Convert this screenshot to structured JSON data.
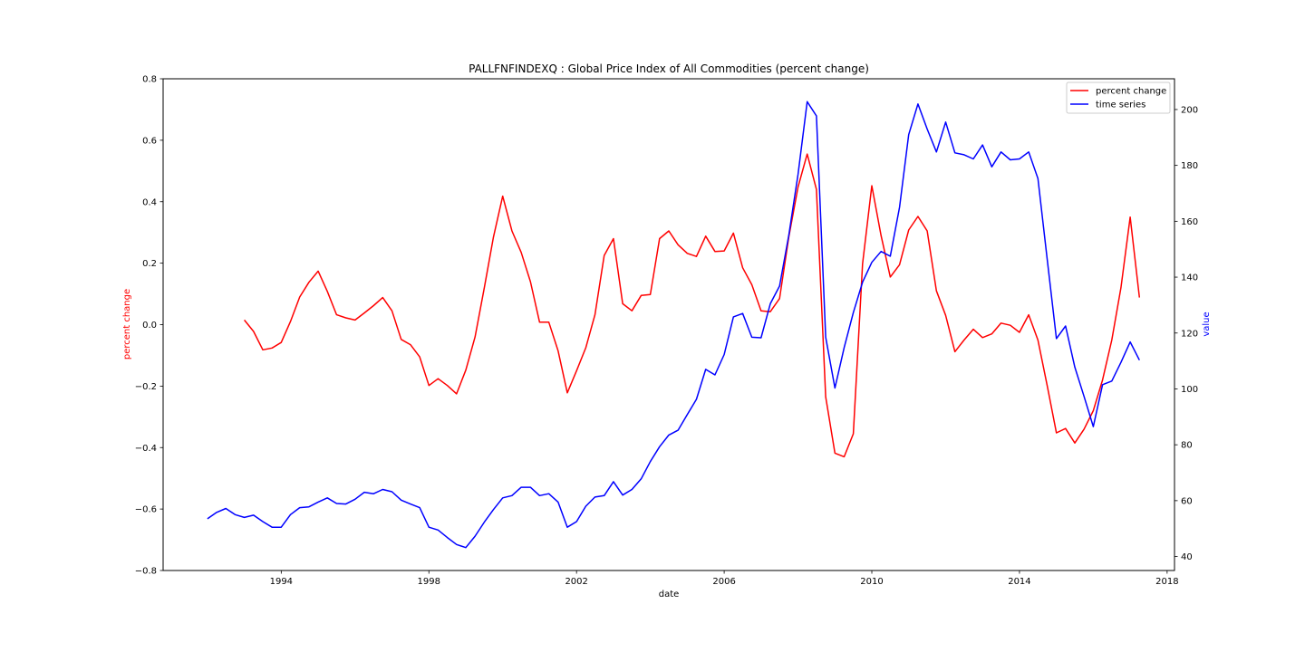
{
  "chart_data": {
    "type": "line",
    "title": "PALLFNFINDEXQ :  Global Price Index of All Commodities (percent change)",
    "xlabel": "date",
    "ylabel_left": "percent change",
    "ylabel_right": "value",
    "xlim": [
      1990.8,
      2018.2
    ],
    "ylim_left": [
      -0.8,
      0.8
    ],
    "ylim_right": [
      35,
      211
    ],
    "x_ticks": [
      1994,
      1998,
      2002,
      2006,
      2010,
      2014,
      2018
    ],
    "y_ticks_left": [
      -0.8,
      -0.6,
      -0.4,
      -0.2,
      0.0,
      0.2,
      0.4,
      0.6,
      0.8
    ],
    "y_ticks_left_labels": [
      "−0.8",
      "−0.6",
      "−0.4",
      "−0.2",
      "0.0",
      "0.2",
      "0.4",
      "0.6",
      "0.8"
    ],
    "y_ticks_right": [
      40,
      60,
      80,
      100,
      120,
      140,
      160,
      180,
      200
    ],
    "legend_position": "top-right",
    "grid": false,
    "series": [
      {
        "name": "percent change",
        "axis": "left",
        "color": "#ff0000",
        "points": [
          [
            1993.0,
            0.015
          ],
          [
            1993.25,
            -0.022
          ],
          [
            1993.5,
            -0.082
          ],
          [
            1993.75,
            -0.076
          ],
          [
            1994.0,
            -0.058
          ],
          [
            1994.25,
            0.01
          ],
          [
            1994.5,
            0.09
          ],
          [
            1994.75,
            0.138
          ],
          [
            1995.0,
            0.174
          ],
          [
            1995.25,
            0.108
          ],
          [
            1995.5,
            0.032
          ],
          [
            1995.75,
            0.022
          ],
          [
            1996.0,
            0.015
          ],
          [
            1996.25,
            0.038
          ],
          [
            1996.5,
            0.062
          ],
          [
            1996.75,
            0.088
          ],
          [
            1997.0,
            0.045
          ],
          [
            1997.25,
            -0.048
          ],
          [
            1997.5,
            -0.065
          ],
          [
            1997.75,
            -0.105
          ],
          [
            1998.0,
            -0.198
          ],
          [
            1998.25,
            -0.176
          ],
          [
            1998.5,
            -0.198
          ],
          [
            1998.75,
            -0.225
          ],
          [
            1999.0,
            -0.148
          ],
          [
            1999.25,
            -0.04
          ],
          [
            1999.5,
            0.12
          ],
          [
            1999.75,
            0.285
          ],
          [
            2000.0,
            0.418
          ],
          [
            2000.25,
            0.305
          ],
          [
            2000.5,
            0.235
          ],
          [
            2000.75,
            0.14
          ],
          [
            2001.0,
            0.008
          ],
          [
            2001.25,
            0.008
          ],
          [
            2001.5,
            -0.085
          ],
          [
            2001.75,
            -0.222
          ],
          [
            2002.0,
            -0.15
          ],
          [
            2002.25,
            -0.075
          ],
          [
            2002.5,
            0.032
          ],
          [
            2002.75,
            0.225
          ],
          [
            2003.0,
            0.28
          ],
          [
            2003.25,
            0.068
          ],
          [
            2003.5,
            0.045
          ],
          [
            2003.75,
            0.095
          ],
          [
            2004.0,
            0.098
          ],
          [
            2004.25,
            0.28
          ],
          [
            2004.5,
            0.305
          ],
          [
            2004.75,
            0.26
          ],
          [
            2005.0,
            0.232
          ],
          [
            2005.25,
            0.222
          ],
          [
            2005.5,
            0.288
          ],
          [
            2005.75,
            0.238
          ],
          [
            2006.0,
            0.24
          ],
          [
            2006.25,
            0.298
          ],
          [
            2006.5,
            0.185
          ],
          [
            2006.75,
            0.13
          ],
          [
            2007.0,
            0.045
          ],
          [
            2007.25,
            0.042
          ],
          [
            2007.5,
            0.085
          ],
          [
            2007.75,
            0.285
          ],
          [
            2008.0,
            0.448
          ],
          [
            2008.25,
            0.555
          ],
          [
            2008.5,
            0.44
          ],
          [
            2008.75,
            -0.235
          ],
          [
            2009.0,
            -0.418
          ],
          [
            2009.25,
            -0.43
          ],
          [
            2009.5,
            -0.355
          ],
          [
            2009.75,
            0.198
          ],
          [
            2010.0,
            0.452
          ],
          [
            2010.25,
            0.29
          ],
          [
            2010.5,
            0.155
          ],
          [
            2010.75,
            0.195
          ],
          [
            2011.0,
            0.308
          ],
          [
            2011.25,
            0.352
          ],
          [
            2011.5,
            0.305
          ],
          [
            2011.75,
            0.11
          ],
          [
            2012.0,
            0.03
          ],
          [
            2012.25,
            -0.088
          ],
          [
            2012.5,
            -0.05
          ],
          [
            2012.75,
            -0.015
          ],
          [
            2013.0,
            -0.042
          ],
          [
            2013.25,
            -0.03
          ],
          [
            2013.5,
            0.005
          ],
          [
            2013.75,
            -0.002
          ],
          [
            2014.0,
            -0.025
          ],
          [
            2014.25,
            0.032
          ],
          [
            2014.5,
            -0.05
          ],
          [
            2014.75,
            -0.198
          ],
          [
            2015.0,
            -0.352
          ],
          [
            2015.25,
            -0.338
          ],
          [
            2015.5,
            -0.385
          ],
          [
            2015.75,
            -0.34
          ],
          [
            2016.0,
            -0.28
          ],
          [
            2016.25,
            -0.18
          ],
          [
            2016.5,
            -0.05
          ],
          [
            2016.75,
            0.12
          ],
          [
            2017.0,
            0.35
          ],
          [
            2017.25,
            0.088
          ]
        ]
      },
      {
        "name": "time series",
        "axis": "right",
        "color": "#0000ff",
        "points": [
          [
            1992.0,
            53.5
          ],
          [
            1992.25,
            55.8
          ],
          [
            1992.5,
            57.2
          ],
          [
            1992.75,
            55.0
          ],
          [
            1993.0,
            54.0
          ],
          [
            1993.25,
            54.8
          ],
          [
            1993.5,
            52.5
          ],
          [
            1993.75,
            50.5
          ],
          [
            1994.0,
            50.5
          ],
          [
            1994.25,
            55.0
          ],
          [
            1994.5,
            57.5
          ],
          [
            1994.75,
            57.8
          ],
          [
            1995.0,
            59.5
          ],
          [
            1995.25,
            61.0
          ],
          [
            1995.5,
            59.0
          ],
          [
            1995.75,
            58.8
          ],
          [
            1996.0,
            60.5
          ],
          [
            1996.25,
            63.0
          ],
          [
            1996.5,
            62.5
          ],
          [
            1996.75,
            64.0
          ],
          [
            1997.0,
            63.2
          ],
          [
            1997.25,
            60.2
          ],
          [
            1997.5,
            58.8
          ],
          [
            1997.75,
            57.5
          ],
          [
            1998.0,
            50.5
          ],
          [
            1998.25,
            49.5
          ],
          [
            1998.5,
            46.8
          ],
          [
            1998.75,
            44.3
          ],
          [
            1999.0,
            43.2
          ],
          [
            1999.25,
            47.3
          ],
          [
            1999.5,
            52.3
          ],
          [
            1999.75,
            56.8
          ],
          [
            2000.0,
            61.0
          ],
          [
            2000.25,
            61.8
          ],
          [
            2000.5,
            64.8
          ],
          [
            2000.75,
            64.8
          ],
          [
            2001.0,
            61.8
          ],
          [
            2001.25,
            62.5
          ],
          [
            2001.5,
            59.5
          ],
          [
            2001.75,
            50.5
          ],
          [
            2002.0,
            52.5
          ],
          [
            2002.25,
            58.0
          ],
          [
            2002.5,
            61.3
          ],
          [
            2002.75,
            61.8
          ],
          [
            2003.0,
            66.8
          ],
          [
            2003.25,
            62.0
          ],
          [
            2003.5,
            64.0
          ],
          [
            2003.75,
            67.8
          ],
          [
            2004.0,
            74.0
          ],
          [
            2004.25,
            79.3
          ],
          [
            2004.5,
            83.5
          ],
          [
            2004.75,
            85.2
          ],
          [
            2005.0,
            90.8
          ],
          [
            2005.25,
            96.3
          ],
          [
            2005.5,
            107.0
          ],
          [
            2005.75,
            105.0
          ],
          [
            2006.0,
            112.3
          ],
          [
            2006.25,
            125.8
          ],
          [
            2006.5,
            127.0
          ],
          [
            2006.75,
            118.5
          ],
          [
            2007.0,
            118.3
          ],
          [
            2007.25,
            130.5
          ],
          [
            2007.5,
            136.8
          ],
          [
            2007.75,
            155.0
          ],
          [
            2008.0,
            176.8
          ],
          [
            2008.25,
            202.8
          ],
          [
            2008.5,
            197.7
          ],
          [
            2008.75,
            118.5
          ],
          [
            2009.0,
            100.3
          ],
          [
            2009.25,
            114.8
          ],
          [
            2009.5,
            127.3
          ],
          [
            2009.75,
            138.2
          ],
          [
            2010.0,
            145.3
          ],
          [
            2010.25,
            149.2
          ],
          [
            2010.5,
            147.5
          ],
          [
            2010.75,
            165.0
          ],
          [
            2011.0,
            191.0
          ],
          [
            2011.25,
            202.0
          ],
          [
            2011.5,
            193.0
          ],
          [
            2011.75,
            184.8
          ],
          [
            2012.0,
            195.5
          ],
          [
            2012.25,
            184.5
          ],
          [
            2012.5,
            183.8
          ],
          [
            2012.75,
            182.3
          ],
          [
            2013.0,
            187.3
          ],
          [
            2013.25,
            179.5
          ],
          [
            2013.5,
            184.8
          ],
          [
            2013.75,
            182.0
          ],
          [
            2014.0,
            182.3
          ],
          [
            2014.25,
            184.8
          ],
          [
            2014.5,
            175.3
          ],
          [
            2014.75,
            146.5
          ],
          [
            2015.0,
            118.0
          ],
          [
            2015.25,
            122.5
          ],
          [
            2015.5,
            107.8
          ],
          [
            2015.75,
            97.3
          ],
          [
            2016.0,
            86.5
          ],
          [
            2016.25,
            101.5
          ],
          [
            2016.5,
            102.8
          ],
          [
            2016.75,
            109.5
          ],
          [
            2017.0,
            116.8
          ],
          [
            2017.25,
            110.3
          ]
        ]
      }
    ]
  }
}
